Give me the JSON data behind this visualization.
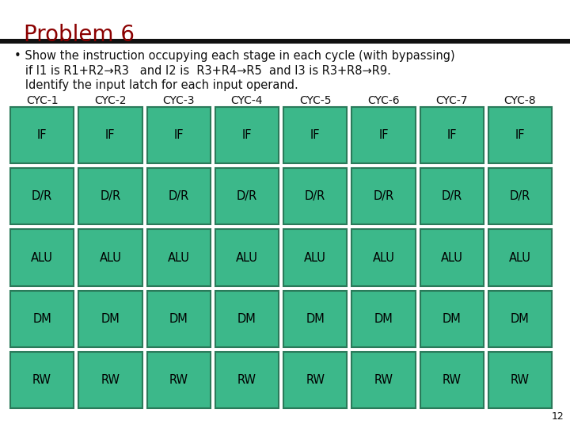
{
  "title": "Problem 6",
  "title_color": "#8b0000",
  "bullet_text_line1": "• Show the instruction occupying each stage in each cycle (with bypassing)",
  "bullet_text_line2": "   if I1 is R1+R2→R3   and I2 is  R3+R4→R5  and I3 is R3+R8→R9.",
  "bullet_text_line3": "   Identify the input latch for each input operand.",
  "cycles": [
    "CYC-1",
    "CYC-2",
    "CYC-3",
    "CYC-4",
    "CYC-5",
    "CYC-6",
    "CYC-7",
    "CYC-8"
  ],
  "stages": [
    "IF",
    "D/R",
    "ALU",
    "DM",
    "RW"
  ],
  "page_number": "12",
  "cell_fill": "#3cb88a",
  "cell_edge": "#2a7a5a",
  "cell_text_color": "#000000",
  "bg_color": "#ffffff",
  "header_bar_color": "#111111",
  "cycle_label_color": "#111111",
  "bullet_color": "#111111",
  "title_fontsize": 20,
  "bullet_fontsize": 10.5,
  "cycle_fontsize": 10,
  "cell_fontsize": 10.5,
  "page_fontsize": 9
}
